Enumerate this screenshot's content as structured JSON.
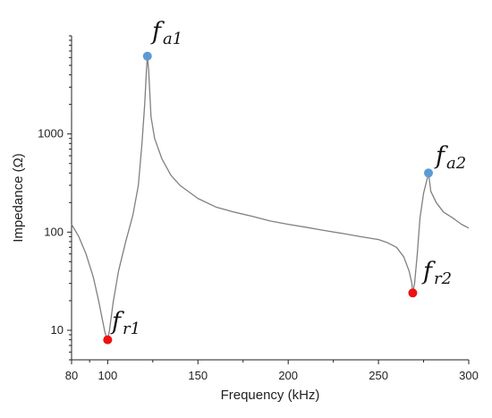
{
  "chart_data": {
    "type": "line",
    "title": "",
    "xlabel": "Frequency (kHz)",
    "ylabel": "Impedance (Ω)",
    "xlim": [
      80,
      300
    ],
    "ylim": [
      5,
      10000
    ],
    "yscale": "log",
    "grid": false,
    "xticks": [
      80,
      100,
      150,
      200,
      250,
      300
    ],
    "xtick_labels": [
      "80",
      "100",
      "150",
      "200",
      "250",
      "300"
    ],
    "yticks": [
      10,
      100,
      1000
    ],
    "ytick_labels": [
      "10",
      "100",
      "1000"
    ],
    "line_color": "#808080",
    "series": [
      {
        "x": [
          80,
          84,
          88,
          92,
          95,
          97,
          98.5,
          99.5,
          100,
          101,
          103,
          106,
          110,
          114,
          117,
          119,
          120.5,
          121.5,
          122,
          122.7,
          124,
          126,
          130,
          135,
          140,
          150,
          160,
          170,
          180,
          190,
          200,
          210,
          220,
          230,
          240,
          250,
          255,
          260,
          264,
          267,
          268.5,
          269,
          270,
          271.5,
          273,
          275,
          277,
          277.7,
          279,
          282,
          286,
          291,
          296,
          300
        ],
        "y": [
          120,
          90,
          60,
          35,
          20,
          13,
          9.5,
          8.3,
          8,
          10,
          19,
          40,
          80,
          150,
          300,
          800,
          2000,
          4500,
          6200,
          4500,
          1500,
          900,
          560,
          380,
          300,
          220,
          180,
          160,
          145,
          130,
          120,
          112,
          104,
          97,
          90,
          84,
          78,
          70,
          56,
          40,
          30,
          24,
          30,
          60,
          140,
          250,
          350,
          400,
          260,
          200,
          160,
          140,
          120,
          110
        ]
      }
    ],
    "points": [
      {
        "name": "f_a1",
        "x": 122,
        "y": 6200,
        "color": "#5b9bd5"
      },
      {
        "name": "f_r1",
        "x": 100,
        "y": 8,
        "color": "#ee1111"
      },
      {
        "name": "f_a2",
        "x": 277.7,
        "y": 400,
        "color": "#5b9bd5"
      },
      {
        "name": "f_r2",
        "x": 269,
        "y": 24,
        "color": "#ee1111"
      }
    ],
    "annotations": [
      {
        "main": "f",
        "sub": "a1"
      },
      {
        "main": "f",
        "sub": "r1"
      },
      {
        "main": "f",
        "sub": "a2"
      },
      {
        "main": "f",
        "sub": "r2"
      }
    ]
  }
}
